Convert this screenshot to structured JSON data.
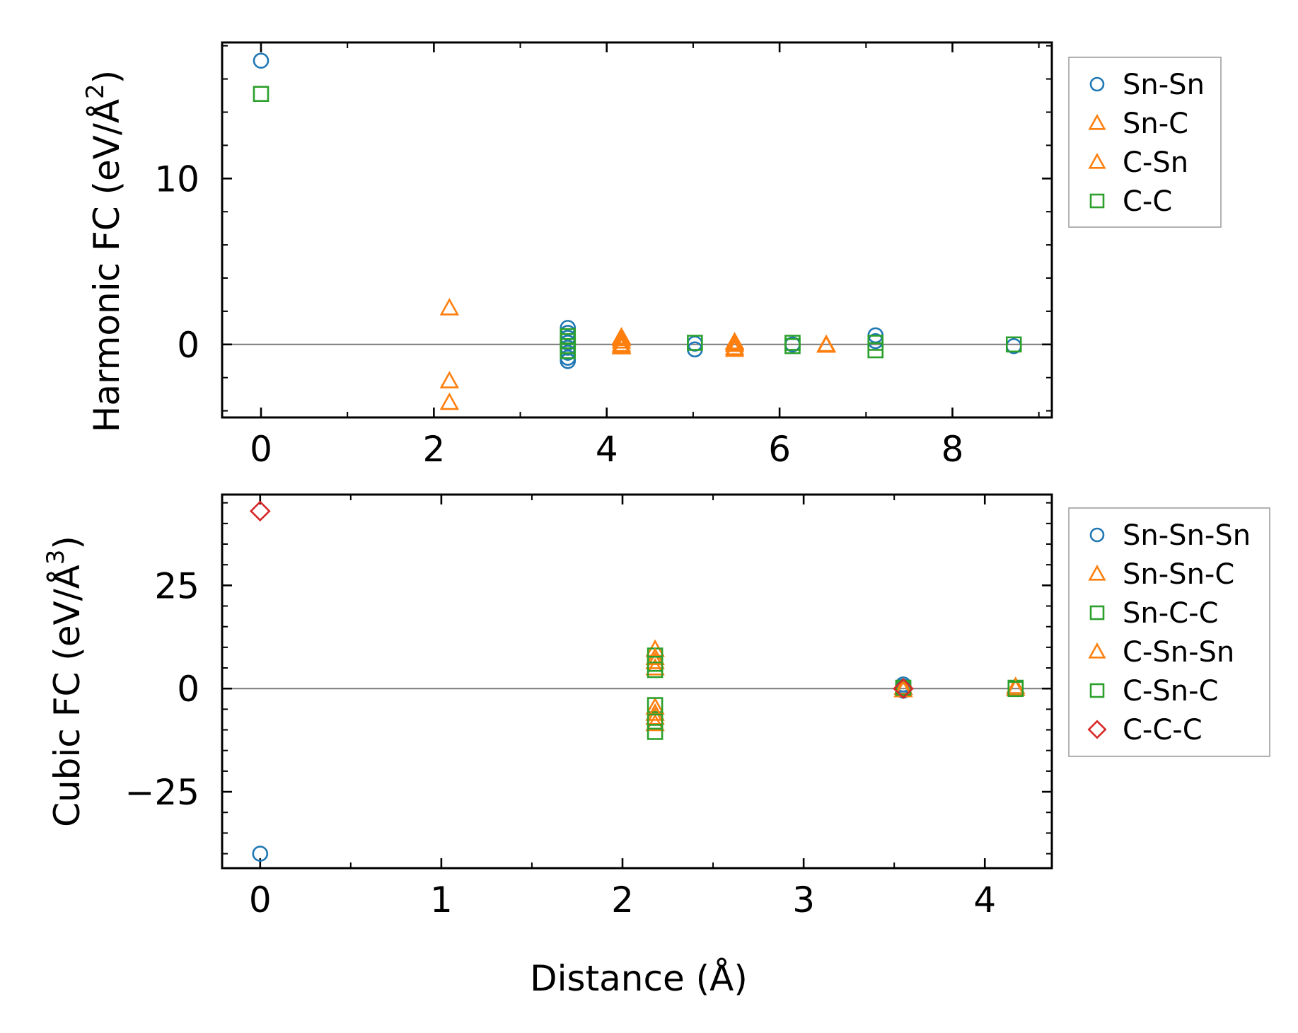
{
  "colors": {
    "blue": "#1f77b4",
    "orange": "#ff7f0e",
    "green": "#2ca02c",
    "red": "#d62728",
    "zero_line": "#808080"
  },
  "shared_xlabel": "Distance (Å)",
  "chart_data": [
    {
      "type": "scatter",
      "name": "harmonic",
      "ylabel_main": "Harmonic FC (eV/Å",
      "ylabel_sup": "2",
      "ylabel_end": ")",
      "xlim": [
        -0.45,
        9.15
      ],
      "ylim": [
        -4.4,
        18.2
      ],
      "xticks": [
        0,
        2,
        4,
        6,
        8
      ],
      "xtick_labels": [
        "0",
        "2",
        "4",
        "6",
        "8"
      ],
      "xminor": [
        1,
        3,
        5,
        7,
        9
      ],
      "yticks": [
        0,
        10
      ],
      "ytick_labels": [
        "0",
        "10"
      ],
      "yminor": [
        -4,
        -2,
        2,
        4,
        6,
        8,
        12,
        14,
        16,
        18
      ],
      "legend_position": "outside-right-top",
      "series": [
        {
          "name": "Sn-Sn",
          "marker": "circle",
          "color": "#1f77b4",
          "points": [
            [
              0,
              17.1
            ],
            [
              3.55,
              1.0
            ],
            [
              3.55,
              0.7
            ],
            [
              3.55,
              0.4
            ],
            [
              3.55,
              0.1
            ],
            [
              3.55,
              -0.2
            ],
            [
              3.55,
              -0.5
            ],
            [
              3.55,
              -0.8
            ],
            [
              3.55,
              -1.0
            ],
            [
              5.02,
              0.05
            ],
            [
              5.02,
              -0.3
            ],
            [
              6.15,
              0.0
            ],
            [
              7.11,
              0.55
            ],
            [
              7.11,
              0.2
            ],
            [
              8.71,
              -0.1
            ]
          ]
        },
        {
          "name": "Sn-C",
          "marker": "triangle",
          "color": "#ff7f0e",
          "points": [
            [
              2.18,
              2.2
            ],
            [
              2.18,
              -2.2
            ],
            [
              2.18,
              -3.5
            ],
            [
              4.17,
              0.45
            ],
            [
              4.17,
              0.2
            ],
            [
              4.17,
              0.0
            ],
            [
              4.17,
              -0.15
            ],
            [
              5.48,
              0.15
            ],
            [
              5.48,
              0.0
            ],
            [
              5.48,
              -0.2
            ],
            [
              6.54,
              0.0
            ]
          ]
        },
        {
          "name": "C-Sn",
          "marker": "triangle",
          "color": "#ff7f0e",
          "points": [
            [
              4.17,
              0.35
            ],
            [
              4.17,
              -0.1
            ],
            [
              5.48,
              0.1
            ],
            [
              5.48,
              -0.3
            ],
            [
              6.54,
              -0.05
            ]
          ]
        },
        {
          "name": "C-C",
          "marker": "square",
          "color": "#2ca02c",
          "points": [
            [
              0,
              15.1
            ],
            [
              3.55,
              0.5
            ],
            [
              3.55,
              0.2
            ],
            [
              3.55,
              -0.1
            ],
            [
              3.55,
              -0.4
            ],
            [
              5.02,
              0.1
            ],
            [
              6.15,
              0.1
            ],
            [
              6.15,
              -0.1
            ],
            [
              7.11,
              0.1
            ],
            [
              7.11,
              -0.35
            ],
            [
              8.71,
              0.0
            ]
          ]
        }
      ]
    },
    {
      "type": "scatter",
      "name": "cubic",
      "ylabel_main": "Cubic FC (eV/Å",
      "ylabel_sup": "3",
      "ylabel_end": ")",
      "xlim": [
        -0.21,
        4.37
      ],
      "ylim": [
        -43.5,
        47.0
      ],
      "xticks": [
        0,
        1,
        2,
        3,
        4
      ],
      "xtick_labels": [
        "0",
        "1",
        "2",
        "3",
        "4"
      ],
      "xminor": [
        0.5,
        1.5,
        2.5,
        3.5
      ],
      "yticks": [
        -25,
        0,
        25
      ],
      "ytick_labels": [
        "−25",
        "0",
        "25"
      ],
      "yminor": [
        -40,
        -35,
        -30,
        -20,
        -15,
        -10,
        -5,
        5,
        10,
        15,
        20,
        30,
        35,
        40,
        45
      ],
      "legend_position": "outside-right-top",
      "series": [
        {
          "name": "Sn-Sn-Sn",
          "marker": "circle",
          "color": "#1f77b4",
          "points": [
            [
              0,
              -40.0
            ],
            [
              3.55,
              1.0
            ],
            [
              3.55,
              0.5
            ],
            [
              3.55,
              0.0
            ],
            [
              3.55,
              -0.5
            ]
          ]
        },
        {
          "name": "Sn-Sn-C",
          "marker": "triangle",
          "color": "#ff7f0e",
          "points": [
            [
              2.18,
              9.5
            ],
            [
              2.18,
              6.5
            ],
            [
              2.18,
              5.0
            ],
            [
              2.18,
              -4.5
            ],
            [
              2.18,
              -7.0
            ],
            [
              2.18,
              -8.5
            ],
            [
              3.55,
              0.3
            ],
            [
              4.17,
              0.5
            ]
          ]
        },
        {
          "name": "Sn-C-C",
          "marker": "square",
          "color": "#2ca02c",
          "points": [
            [
              2.18,
              8.0
            ],
            [
              2.18,
              4.5
            ],
            [
              2.18,
              -4.0
            ],
            [
              2.18,
              -10.5
            ],
            [
              3.55,
              0.0
            ],
            [
              4.17,
              0.2
            ]
          ]
        },
        {
          "name": "C-Sn-Sn",
          "marker": "triangle",
          "color": "#ff7f0e",
          "points": [
            [
              2.18,
              7.5
            ],
            [
              2.18,
              -6.0
            ],
            [
              3.55,
              -0.3
            ],
            [
              4.17,
              0.0
            ]
          ]
        },
        {
          "name": "C-Sn-C",
          "marker": "square",
          "color": "#2ca02c",
          "points": [
            [
              2.18,
              6.0
            ],
            [
              2.18,
              -8.0
            ],
            [
              3.55,
              0.2
            ],
            [
              4.17,
              -0.1
            ]
          ]
        },
        {
          "name": "C-C-C",
          "marker": "diamond",
          "color": "#d62728",
          "points": [
            [
              0,
              43.0
            ],
            [
              3.55,
              0.0
            ]
          ]
        }
      ]
    }
  ]
}
